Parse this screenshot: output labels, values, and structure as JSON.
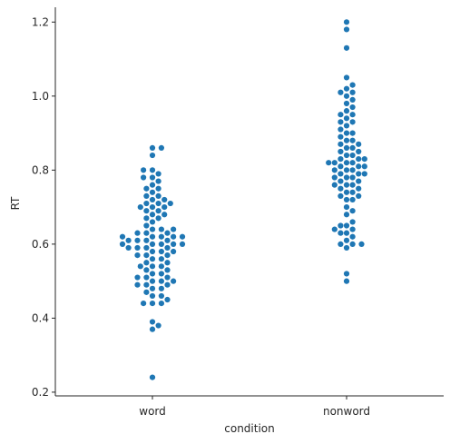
{
  "chart_data": {
    "type": "scatter",
    "subtype": "swarm",
    "title": "",
    "xlabel": "condition",
    "ylabel": "RT",
    "categories": [
      "word",
      "nonword"
    ],
    "ylim": [
      0.19,
      1.24
    ],
    "yticks": [
      0.2,
      0.4,
      0.6,
      0.8,
      1.0,
      1.2
    ],
    "ytick_labels": [
      "0.2",
      "0.4",
      "0.6",
      "0.8",
      "1.0",
      "1.2"
    ],
    "grid": false,
    "legend": "none",
    "marker_color": "#1f77b4",
    "series": [
      {
        "category": "word",
        "values": [
          0.24,
          0.37,
          0.38,
          0.39,
          0.44,
          0.44,
          0.44,
          0.45,
          0.46,
          0.46,
          0.47,
          0.48,
          0.48,
          0.49,
          0.49,
          0.49,
          0.5,
          0.5,
          0.5,
          0.51,
          0.51,
          0.51,
          0.52,
          0.52,
          0.53,
          0.53,
          0.54,
          0.54,
          0.54,
          0.55,
          0.55,
          0.56,
          0.56,
          0.57,
          0.57,
          0.57,
          0.58,
          0.58,
          0.58,
          0.59,
          0.59,
          0.59,
          0.59,
          0.6,
          0.6,
          0.6,
          0.6,
          0.6,
          0.61,
          0.61,
          0.61,
          0.61,
          0.62,
          0.62,
          0.62,
          0.62,
          0.62,
          0.63,
          0.63,
          0.63,
          0.64,
          0.64,
          0.64,
          0.65,
          0.66,
          0.67,
          0.67,
          0.68,
          0.68,
          0.69,
          0.69,
          0.7,
          0.7,
          0.7,
          0.71,
          0.71,
          0.71,
          0.72,
          0.72,
          0.73,
          0.73,
          0.74,
          0.75,
          0.75,
          0.76,
          0.77,
          0.78,
          0.78,
          0.79,
          0.8,
          0.8,
          0.84,
          0.86,
          0.86
        ]
      },
      {
        "category": "nonword",
        "values": [
          0.5,
          0.52,
          0.59,
          0.6,
          0.6,
          0.6,
          0.61,
          0.62,
          0.63,
          0.63,
          0.64,
          0.64,
          0.65,
          0.65,
          0.66,
          0.68,
          0.69,
          0.7,
          0.72,
          0.72,
          0.73,
          0.73,
          0.74,
          0.74,
          0.75,
          0.75,
          0.76,
          0.76,
          0.76,
          0.77,
          0.77,
          0.78,
          0.78,
          0.78,
          0.79,
          0.79,
          0.79,
          0.8,
          0.8,
          0.8,
          0.81,
          0.81,
          0.81,
          0.82,
          0.82,
          0.82,
          0.82,
          0.83,
          0.83,
          0.83,
          0.84,
          0.84,
          0.85,
          0.85,
          0.86,
          0.86,
          0.87,
          0.87,
          0.88,
          0.88,
          0.89,
          0.9,
          0.9,
          0.91,
          0.92,
          0.93,
          0.93,
          0.94,
          0.95,
          0.95,
          0.96,
          0.97,
          0.98,
          0.99,
          1.0,
          1.01,
          1.01,
          1.02,
          1.03,
          1.05,
          1.13,
          1.18,
          1.2
        ]
      }
    ]
  }
}
